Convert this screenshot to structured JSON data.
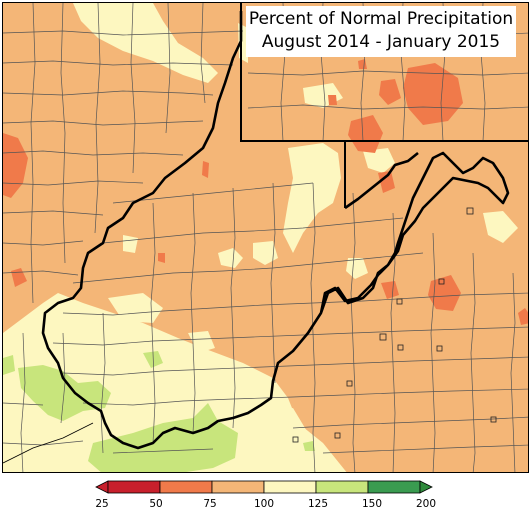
{
  "map": {
    "title_line1": "Percent of Normal Precipitation",
    "title_line2": "August 2014 - January 2015"
  },
  "legend": {
    "ticks": [
      "25",
      "50",
      "75",
      "100",
      "125",
      "150",
      "200"
    ],
    "colors": [
      "#c8202c",
      "#f07a4a",
      "#f4b677",
      "#fdf7c0",
      "#c8e57c",
      "#3a9b50"
    ],
    "arrow_left_color": "#c8202c",
    "arrow_right_color": "#2f8a3c"
  },
  "colors": {
    "below_normal": "#f4b677",
    "much_below": "#f07a4a",
    "near_normal": "#fdf7c0",
    "above_normal": "#c8e57c",
    "much_above": "#3a9b50",
    "state_border": "#000000",
    "county_line": "#555555"
  }
}
